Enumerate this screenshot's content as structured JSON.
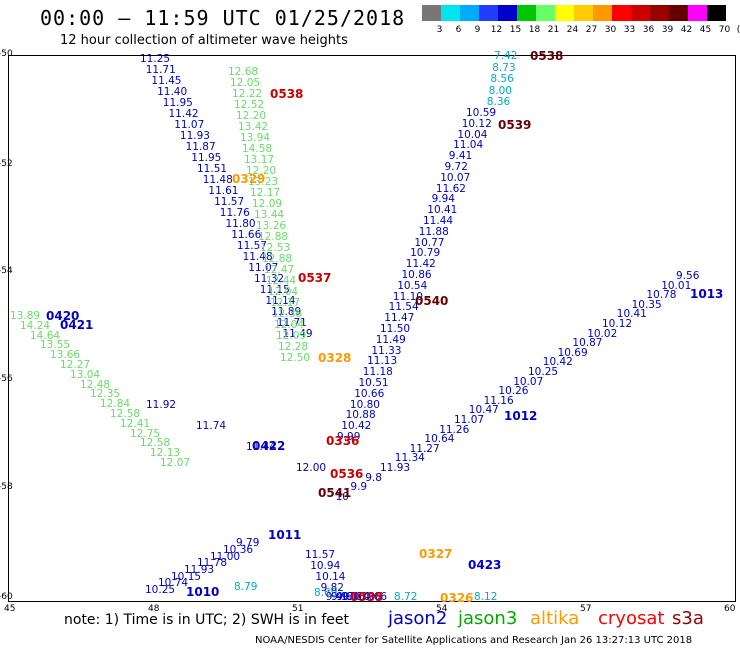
{
  "title": "00:00 – 11:59 UTC 01/25/2018",
  "subtitle": "12 hour collection of altimeter wave heights",
  "color_scale": {
    "labels": [
      "3",
      "6",
      "9",
      "12",
      "15",
      "18",
      "21",
      "24",
      "27",
      "30",
      "33",
      "36",
      "39",
      "42",
      "45",
      "70",
      "(ft)"
    ],
    "colors": [
      "#777777",
      "#00e5ee",
      "#00aaff",
      "#1f3cff",
      "#0000c8",
      "#00c800",
      "#66ff66",
      "#ffff00",
      "#ffcc00",
      "#ff9900",
      "#ff0000",
      "#cc0000",
      "#990000",
      "#660000",
      "#ff00ff",
      "#000000"
    ]
  },
  "axes": {
    "y_ticks": [
      "-50",
      "-52",
      "-54",
      "-56",
      "-58",
      "-60"
    ],
    "x_ticks": [
      "45",
      "48",
      "51",
      "54",
      "57",
      "60"
    ]
  },
  "passes": [
    {
      "label": "0538",
      "color": "#cc0000"
    },
    {
      "label": "0538",
      "color": "#660000"
    },
    {
      "label": "0539",
      "color": "#660000"
    },
    {
      "label": "0329",
      "color": "#ff9900"
    },
    {
      "label": "0537",
      "color": "#cc0000"
    },
    {
      "label": "0540",
      "color": "#660000"
    },
    {
      "label": "0420",
      "color": "#0000c8"
    },
    {
      "label": "0421",
      "color": "#0000c8"
    },
    {
      "label": "0328",
      "color": "#ff9900"
    },
    {
      "label": "0422",
      "color": "#0000c8"
    },
    {
      "label": "0336",
      "color": "#cc0000"
    },
    {
      "label": "0536",
      "color": "#cc0000"
    },
    {
      "label": "1012",
      "color": "#0000c8"
    },
    {
      "label": "1013",
      "color": "#0000c8"
    },
    {
      "label": "0541",
      "color": "#660000"
    },
    {
      "label": "1011",
      "color": "#0000c8"
    },
    {
      "label": "0327",
      "color": "#ff9900"
    },
    {
      "label": "0423",
      "color": "#0000c8"
    },
    {
      "label": "1010",
      "color": "#0000c8"
    },
    {
      "label": "0535",
      "color": "#cc0000"
    },
    {
      "label": "0326",
      "color": "#ff9900"
    }
  ],
  "tracks": [
    {
      "name": "blue-nw",
      "color": "#0000c8",
      "values": [
        "11.25",
        "11.71",
        "11.45",
        "11.40",
        "11.95",
        "11.42",
        "11.07",
        "11.93",
        "11.87",
        "11.95",
        "11.51",
        "11.48",
        "11.61",
        "11.57",
        "11.76",
        "11.80",
        "11.66",
        "11.57",
        "11.48",
        "11.07",
        "11.32",
        "11.15",
        "11.14",
        "11.89",
        "11.71",
        "11.49"
      ]
    },
    {
      "name": "green-n",
      "color": "#66dd66",
      "values": [
        "12.68",
        "12.05",
        "12.22",
        "12.52",
        "12.20",
        "13.42",
        "13.94",
        "14.58",
        "13.17",
        "12.20",
        "13.23",
        "12.17",
        "12.09",
        "13.44",
        "13.26",
        "12.88",
        "12.53",
        "12.88",
        "12.47",
        "12.44",
        "12.04",
        "12.17",
        "12.36",
        "12.04",
        "12.09",
        "12.28",
        "12.50"
      ]
    },
    {
      "name": "blue-ne",
      "color": "#0000c8",
      "values": [
        "10.59",
        "10.12",
        "10.04",
        "11.04",
        "9.41",
        "9.72",
        "10.07",
        "11.62",
        "9.94",
        "10.41",
        "11.44",
        "11.88",
        "10.77",
        "10.79",
        "11.42",
        "10.86",
        "10.54",
        "11.10",
        "11.54",
        "11.47",
        "11.50",
        "11.49",
        "11.33",
        "11.13",
        "11.18",
        "10.51",
        "10.66",
        "10.80",
        "10.88",
        "10.42",
        "9.99"
      ]
    },
    {
      "name": "cyan-ne",
      "color": "#00aacc",
      "values": [
        "7.42",
        "8.73",
        "8.56",
        "8.00",
        "8.36"
      ]
    },
    {
      "name": "green-w",
      "color": "#66dd66",
      "values": [
        "13.89",
        "14.24",
        "14.64",
        "13.55",
        "13.66",
        "12.27",
        "13.04",
        "12.48",
        "12.35",
        "12.84",
        "12.58",
        "12.41",
        "12.75",
        "12.58",
        "12.13",
        "12.07"
      ]
    },
    {
      "name": "blue-w",
      "color": "#0000c8",
      "values": [
        "11.92",
        "11.74",
        "11.44",
        "12.00"
      ]
    },
    {
      "name": "blue-e",
      "color": "#0000c8",
      "values": [
        "9.56",
        "10.01",
        "10.78",
        "10.35",
        "10.41",
        "10.12",
        "10.02",
        "10.87",
        "10.69",
        "10.42",
        "10.25",
        "10.07",
        "10.26",
        "11.16",
        "10.47",
        "11.07",
        "11.26",
        "10.64",
        "11.27",
        "11.34",
        "11.93",
        "9.8",
        "9.9",
        "10"
      ]
    },
    {
      "name": "blue-sw",
      "color": "#0000c8",
      "values": [
        "10.25",
        "10.74",
        "10.15",
        "11.93",
        "11.78",
        "11.00",
        "10.36",
        "9.79"
      ]
    },
    {
      "name": "cyan-sw",
      "color": "#00aacc",
      "values": [
        "8.79",
        "8.69",
        "8.72",
        "8.12"
      ]
    },
    {
      "name": "blue-s",
      "color": "#0000c8",
      "values": [
        "11.57",
        "10.94",
        "10.14",
        "9.82",
        "9.40",
        "9.17",
        "9.60",
        "9.06",
        "9.14",
        "10.08",
        "10.66"
      ]
    }
  ],
  "legend": {
    "note": "note: 1) Time is in UTC; 2) SWH is in feet",
    "items": [
      {
        "name": "jason2",
        "color": "#0000c8"
      },
      {
        "name": "jason3",
        "color": "#00aa00"
      },
      {
        "name": "altika",
        "color": "#ff9900"
      },
      {
        "name": "cryosat",
        "color": "#ff0000"
      },
      {
        "name": "s3a",
        "color": "#990000"
      }
    ]
  },
  "footer": "NOAA/NESDIS Center for Satellite Applications and Research   Jan 26 13:27:13 UTC 2018"
}
